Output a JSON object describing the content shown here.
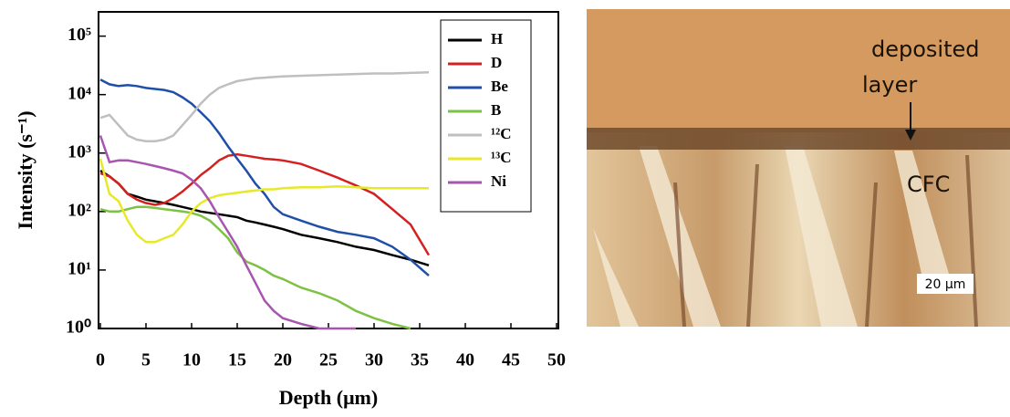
{
  "chart_data": {
    "type": "line",
    "x_label": "Depth (μm)",
    "y_label": "Intensity (s⁻¹)",
    "log_y": true,
    "xlim": [
      0,
      50
    ],
    "xticks": [
      0,
      5,
      10,
      15,
      20,
      25,
      30,
      35,
      40,
      45,
      50
    ],
    "ylim": [
      1,
      260000
    ],
    "yticks": [
      {
        "value": 1,
        "label": "10⁰"
      },
      {
        "value": 10,
        "label": "10¹"
      },
      {
        "value": 100,
        "label": "10²"
      },
      {
        "value": 1000,
        "label": "10³"
      },
      {
        "value": 10000,
        "label": "10⁴"
      },
      {
        "value": 100000,
        "label": "10⁵"
      }
    ],
    "legend": "top-right",
    "x": [
      0,
      1,
      2,
      3,
      4,
      5,
      6,
      7,
      8,
      9,
      10,
      11,
      12,
      13,
      14,
      15,
      16,
      17,
      18,
      19,
      20,
      22,
      24,
      26,
      28,
      30,
      32,
      34,
      36
    ],
    "series": [
      {
        "name": "H",
        "color": "#000000",
        "values": [
          500,
          400,
          300,
          200,
          180,
          160,
          150,
          140,
          130,
          120,
          110,
          100,
          95,
          90,
          85,
          80,
          70,
          65,
          60,
          55,
          50,
          40,
          35,
          30,
          25,
          22,
          18,
          15,
          12
        ]
      },
      {
        "name": "D",
        "color": "#d42020",
        "values": [
          450,
          400,
          300,
          200,
          160,
          140,
          130,
          140,
          170,
          220,
          300,
          420,
          550,
          750,
          900,
          950,
          900,
          850,
          800,
          780,
          750,
          650,
          500,
          380,
          280,
          200,
          110,
          60,
          18
        ]
      },
      {
        "name": "Be",
        "color": "#1f4fa8",
        "values": [
          18000,
          15000,
          14000,
          14500,
          14000,
          13000,
          12500,
          12000,
          11000,
          9000,
          7000,
          5000,
          3500,
          2200,
          1300,
          800,
          500,
          300,
          200,
          120,
          90,
          70,
          55,
          45,
          40,
          35,
          25,
          15,
          8
        ]
      },
      {
        "name": "B",
        "color": "#7dc242",
        "values": [
          110,
          100,
          100,
          110,
          120,
          120,
          115,
          110,
          105,
          100,
          95,
          85,
          70,
          50,
          35,
          20,
          14,
          12,
          10,
          8,
          7,
          5,
          4,
          3,
          2,
          1.5,
          1.2,
          1,
          null
        ]
      },
      {
        "name": "¹²C",
        "color": "#bfbfbf",
        "values": [
          4000,
          4500,
          3000,
          2000,
          1700,
          1600,
          1600,
          1700,
          2000,
          3000,
          4500,
          7000,
          10000,
          13000,
          15000,
          17000,
          18000,
          19000,
          19500,
          20000,
          20500,
          21000,
          21500,
          22000,
          22500,
          23000,
          23000,
          23500,
          24000
        ]
      },
      {
        "name": "¹³C",
        "color": "#e8e82a",
        "values": [
          800,
          200,
          150,
          70,
          40,
          30,
          30,
          35,
          40,
          60,
          100,
          140,
          170,
          190,
          200,
          210,
          220,
          230,
          240,
          240,
          250,
          260,
          260,
          270,
          260,
          250,
          250,
          250,
          250
        ]
      },
      {
        "name": "Ni",
        "color": "#a855b0",
        "values": [
          2000,
          700,
          750,
          750,
          700,
          650,
          600,
          550,
          500,
          450,
          350,
          250,
          150,
          80,
          45,
          25,
          12,
          6,
          3,
          2,
          1.5,
          1.2,
          1,
          1,
          1,
          null,
          null,
          null,
          null
        ]
      }
    ]
  },
  "image": {
    "labels": [
      "deposited",
      "layer",
      "CFC"
    ],
    "scale_bar": "20 μm"
  }
}
